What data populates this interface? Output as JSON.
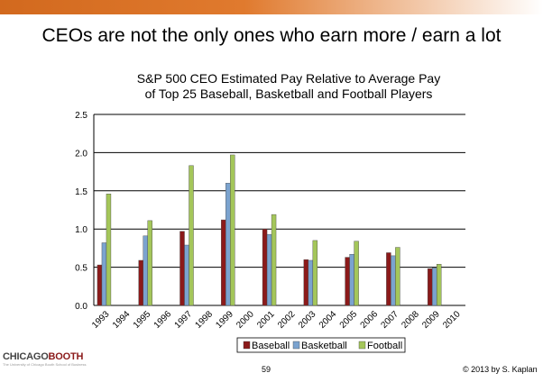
{
  "slide": {
    "title": "CEOs are not the only ones who earn more / earn a lot",
    "page_number": "59",
    "copyright": "© 2013 by S. Kaplan",
    "logo_text_1": "CHICAGO",
    "logo_text_2": "BOOTH",
    "logo_subtext": "The University of Chicago Booth School of Business"
  },
  "chart_data": {
    "type": "bar",
    "title_line1": "S&P 500 CEO Estimated Pay Relative to Average Pay",
    "title_line2": "of Top 25 Baseball, Basketball and Football Players",
    "categories": [
      "1993",
      "1994",
      "1995",
      "1996",
      "1997",
      "1998",
      "1999",
      "2000",
      "2001",
      "2002",
      "2003",
      "2004",
      "2005",
      "2006",
      "2007",
      "2008",
      "2009",
      "2010"
    ],
    "series": [
      {
        "name": "Baseball",
        "color": "#8b1a1a",
        "values": [
          0.53,
          null,
          0.59,
          null,
          0.97,
          null,
          1.12,
          null,
          1.0,
          null,
          0.6,
          null,
          0.63,
          null,
          0.69,
          null,
          0.48,
          null
        ]
      },
      {
        "name": "Basketball",
        "color": "#7ba3cf",
        "values": [
          0.82,
          null,
          0.91,
          null,
          0.79,
          null,
          1.6,
          null,
          0.93,
          null,
          0.59,
          null,
          0.67,
          null,
          0.65,
          null,
          0.49,
          null
        ]
      },
      {
        "name": "Football",
        "color": "#a4c65a",
        "values": [
          1.46,
          null,
          1.11,
          null,
          1.83,
          null,
          1.97,
          null,
          1.19,
          null,
          0.85,
          null,
          0.84,
          null,
          0.76,
          null,
          0.54,
          null
        ]
      }
    ],
    "yticks": [
      "0.0",
      "0.5",
      "1.0",
      "1.5",
      "2.0",
      "2.5"
    ],
    "ylim": [
      0,
      2.5
    ],
    "grid": true,
    "legend": "bottom"
  }
}
